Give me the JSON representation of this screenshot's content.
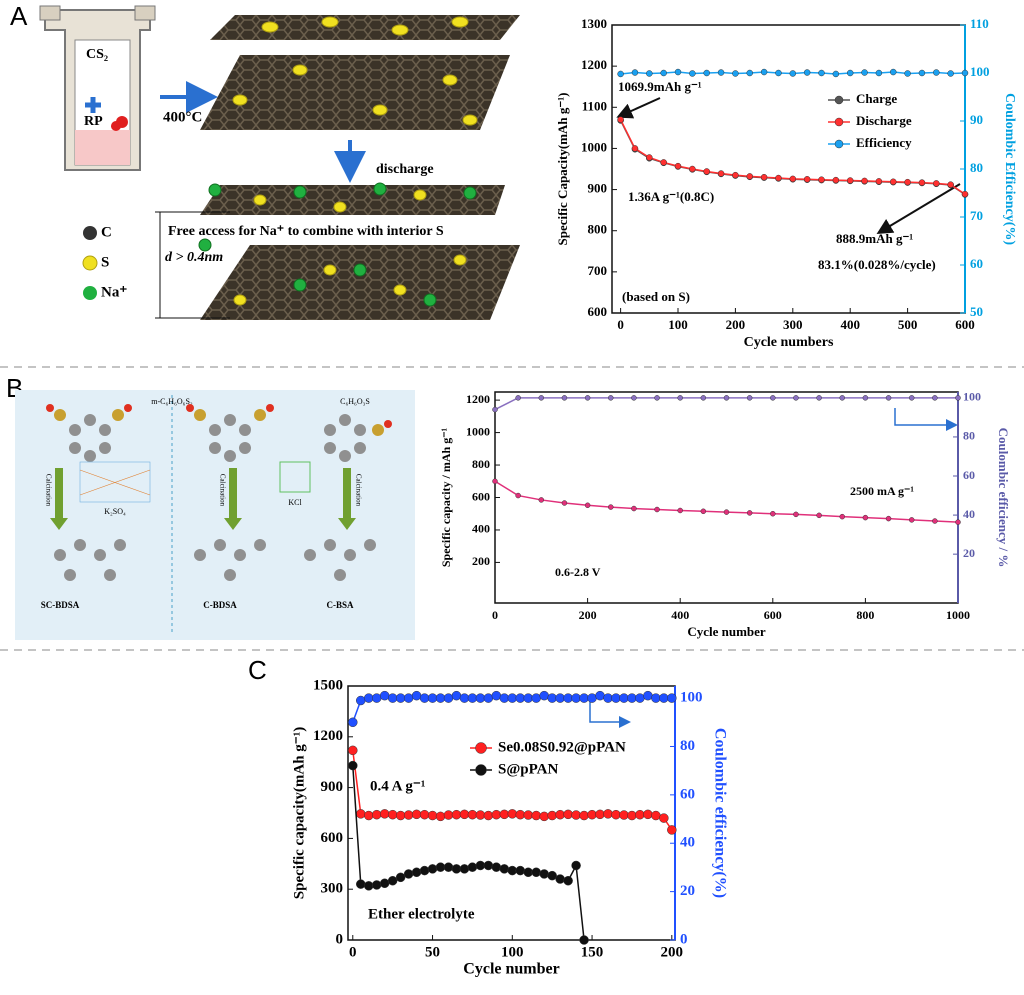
{
  "figure": {
    "panel_labels": [
      "A",
      "B",
      "C"
    ],
    "schematic_a": {
      "reactants": [
        "CS₂",
        "RP"
      ],
      "temperature": "400°C",
      "step": "discharge",
      "legend": [
        "C",
        "S",
        "Na⁺"
      ],
      "note": "Free access for Na⁺ to combine with interior S",
      "spacing": "d > 0.4nm"
    },
    "schematic_b": {
      "precursors": [
        "m-C₆H₆O₆S₂",
        "C₆H₆O₃S"
      ],
      "process": [
        "Calcination",
        "Calcination",
        "Calcination"
      ],
      "templates": [
        "K₂SO₄",
        "KCl"
      ],
      "products": [
        "SC-BDSA",
        "C-BDSA",
        "C-BSA"
      ]
    }
  },
  "chart_data": [
    {
      "type": "line",
      "xlabel": "Cycle numbers",
      "ylabel": "Specific Capacity(mAh g⁻¹)",
      "y2label": "Coulombic Efficiency(%)",
      "y2color": "#00a0e0",
      "x": [
        0,
        25,
        50,
        75,
        100,
        125,
        150,
        175,
        200,
        225,
        250,
        275,
        300,
        325,
        350,
        375,
        400,
        425,
        450,
        475,
        500,
        525,
        550,
        575,
        600
      ],
      "series": [
        {
          "name": "Charge",
          "color": "#555555",
          "values": [
            1068,
            998,
            976,
            965,
            956,
            949,
            943,
            938,
            934,
            931,
            929,
            927,
            925,
            924,
            923,
            922,
            921,
            920,
            919,
            918,
            917,
            916,
            914,
            911,
            888
          ]
        },
        {
          "name": "Discharge",
          "color": "#ff3030",
          "values": [
            1070,
            1000,
            978,
            966,
            957,
            950,
            944,
            939,
            935,
            932,
            930,
            928,
            926,
            925,
            924,
            923,
            922,
            921,
            920,
            919,
            918,
            917,
            915,
            912,
            889
          ]
        },
        {
          "name": "Efficiency",
          "color": "#1aa0f0",
          "axis": "y2",
          "values": [
            99.8,
            100.1,
            99.9,
            100,
            100.2,
            99.9,
            100,
            100.1,
            99.9,
            100,
            100.2,
            100,
            99.9,
            100.1,
            100,
            99.8,
            100,
            100.1,
            100,
            100.2,
            99.9,
            100,
            100.1,
            99.9,
            100
          ]
        }
      ],
      "xlim": [
        -15,
        600
      ],
      "xticks": [
        0,
        100,
        200,
        300,
        400,
        500,
        600
      ],
      "ylim": [
        600,
        1300
      ],
      "yticks": [
        600,
        700,
        800,
        900,
        1000,
        1100,
        1200,
        1300
      ],
      "y2lim": [
        50,
        110
      ],
      "y2ticks": [
        50,
        60,
        70,
        80,
        90,
        100,
        110
      ],
      "annotations": [
        "1069.9mAh g⁻¹",
        "1.36A g⁻¹(0.8C)",
        "888.9mAh g⁻¹",
        "83.1%(0.028%/cycle)",
        "(based on S)"
      ]
    },
    {
      "type": "line",
      "xlabel": "Cycle number",
      "ylabel": "Specific capacity / mAh g⁻¹",
      "y2label": "Coulombic efficiency / %",
      "y2color": "#5a5aa8",
      "x": [
        0,
        50,
        100,
        150,
        200,
        250,
        300,
        350,
        400,
        450,
        500,
        550,
        600,
        650,
        700,
        750,
        800,
        850,
        900,
        950,
        1000
      ],
      "series": [
        {
          "color": "#e0307a",
          "values": [
            700,
            612,
            585,
            566,
            552,
            541,
            532,
            526,
            520,
            515,
            510,
            505,
            500,
            496,
            490,
            482,
            476,
            470,
            462,
            455,
            448
          ]
        },
        {
          "color": "#8a70c0",
          "axis": "y2",
          "values": [
            94,
            100,
            100,
            100,
            100,
            100,
            100,
            100,
            100,
            100,
            100,
            100,
            100,
            100,
            100,
            100,
            100,
            100,
            100,
            100,
            100
          ]
        }
      ],
      "xlim": [
        0,
        1000
      ],
      "xticks": [
        0,
        200,
        400,
        600,
        800,
        1000
      ],
      "ylim": [
        -50,
        1250
      ],
      "yticks": [
        200,
        400,
        600,
        800,
        1000,
        1200
      ],
      "y2lim": [
        -5,
        103
      ],
      "y2ticks": [
        20,
        40,
        60,
        80,
        100
      ],
      "annotations": [
        "2500 mA g⁻¹",
        "0.6-2.8 V"
      ]
    },
    {
      "type": "line",
      "xlabel": "Cycle number",
      "ylabel": "Specific capacity(mAh g⁻¹)",
      "y2label": "Coulombic efficiency(%)",
      "y2color": "#2050ff",
      "x": [
        0,
        5,
        10,
        15,
        20,
        25,
        30,
        35,
        40,
        45,
        50,
        55,
        60,
        65,
        70,
        75,
        80,
        85,
        90,
        95,
        100,
        105,
        110,
        115,
        120,
        125,
        130,
        135,
        140,
        145,
        150,
        155,
        160,
        165,
        170,
        175,
        180,
        185,
        190,
        195,
        200
      ],
      "series": [
        {
          "name": "Se0.08S0.92@pPAN",
          "color": "#ff2020",
          "values": [
            1120,
            745,
            735,
            740,
            745,
            740,
            735,
            738,
            742,
            740,
            735,
            730,
            738,
            740,
            742,
            740,
            738,
            735,
            740,
            742,
            745,
            740,
            738,
            735,
            730,
            735,
            740,
            742,
            738,
            735,
            740,
            742,
            745,
            740,
            738,
            735,
            740,
            742,
            735,
            720,
            650
          ]
        },
        {
          "name": "S@pPAN",
          "color": "#111111",
          "values": [
            1030,
            330,
            320,
            325,
            335,
            350,
            370,
            390,
            400,
            410,
            420,
            430,
            430,
            420,
            420,
            430,
            440,
            440,
            430,
            420,
            410,
            410,
            400,
            400,
            390,
            380,
            360,
            350,
            440,
            0,
            null,
            null,
            null,
            null,
            null,
            null,
            null,
            null,
            null,
            null,
            null
          ]
        },
        {
          "color": "#2050ff",
          "axis": "y2",
          "values": [
            90,
            99,
            100,
            100,
            101,
            100,
            100,
            100,
            101,
            100,
            100,
            100,
            100,
            101,
            100,
            100,
            100,
            100,
            101,
            100,
            100,
            100,
            100,
            100,
            101,
            100,
            100,
            100,
            100,
            100,
            100,
            101,
            100,
            100,
            100,
            100,
            100,
            101,
            100,
            100,
            100
          ]
        }
      ],
      "xlim": [
        -3,
        202
      ],
      "xticks": [
        0,
        50,
        100,
        150,
        200
      ],
      "ylim": [
        0,
        1500
      ],
      "yticks": [
        0,
        300,
        600,
        900,
        1200,
        1500
      ],
      "y2lim": [
        0,
        105
      ],
      "y2ticks": [
        0,
        20,
        40,
        60,
        80,
        100
      ],
      "annotations": [
        "0.4 A g⁻¹",
        "Ether electrolyte"
      ]
    }
  ]
}
